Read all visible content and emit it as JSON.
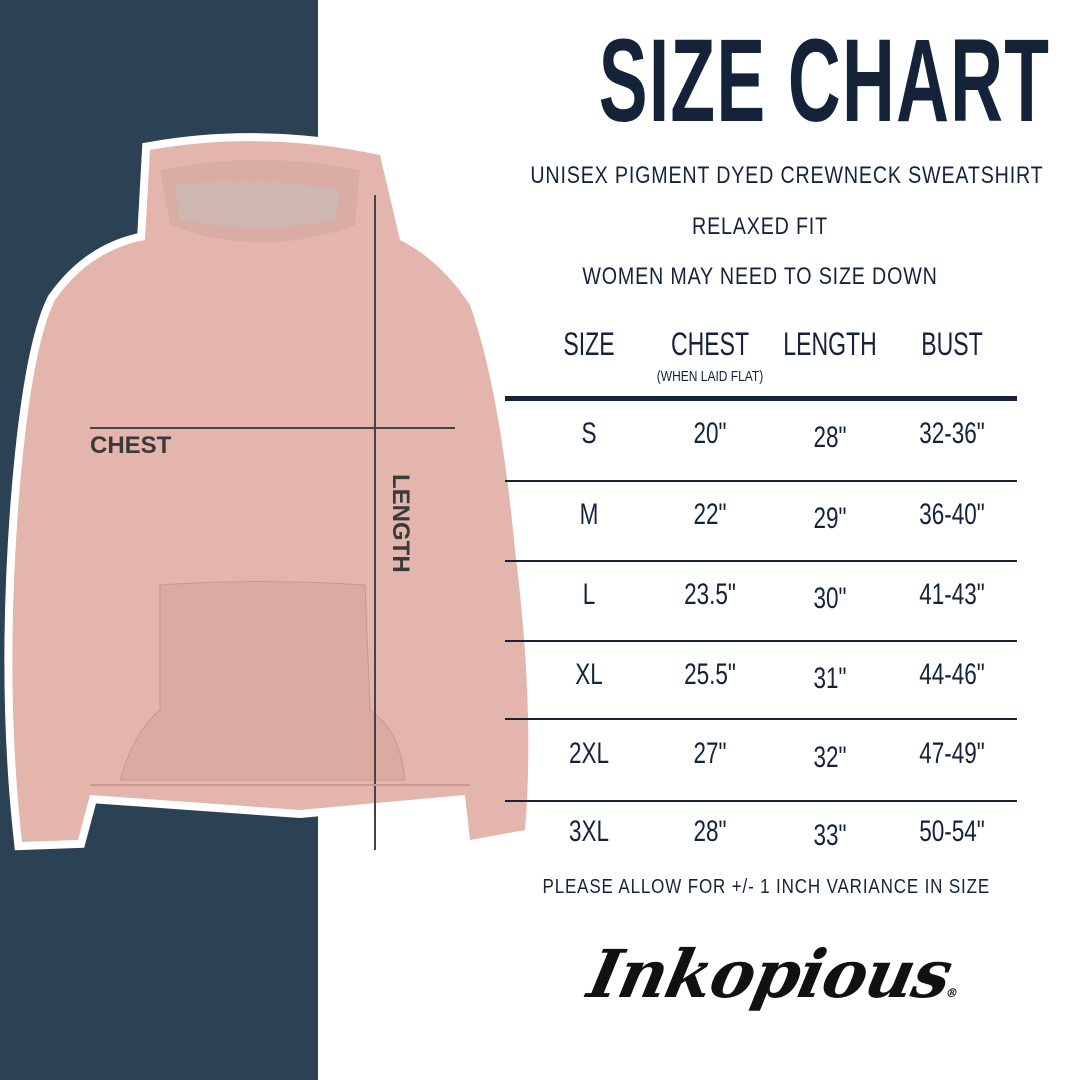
{
  "title": "SIZE CHART",
  "subtitles": [
    "UNISEX PIGMENT DYED CREWNECK SWEATSHIRT",
    "RELAXED FIT",
    "WOMEN MAY NEED TO SIZE DOWN"
  ],
  "table": {
    "headers": [
      "SIZE",
      "CHEST",
      "LENGTH",
      "BUST"
    ],
    "chest_note": "(WHEN LAID FLAT)",
    "rows": [
      [
        "S",
        "20\"",
        "28\"",
        "32-36\""
      ],
      [
        "M",
        "22\"",
        "29\"",
        "36-40\""
      ],
      [
        "L",
        "23.5\"",
        "30\"",
        "41-43\""
      ],
      [
        "XL",
        "25.5\"",
        "31\"",
        "44-46\""
      ],
      [
        "2XL",
        "27\"",
        "32\"",
        "47-49\""
      ],
      [
        "3XL",
        "28\"",
        "33\"",
        "50-54\""
      ]
    ]
  },
  "note": "PLEASE ALLOW FOR +/- 1 INCH VARIANCE IN SIZE",
  "photo_labels": {
    "chest": "CHEST",
    "length": "LENGTH"
  },
  "brand": "Inkopious",
  "colors": {
    "navy_panel": "#2b4154",
    "text": "#14233a",
    "hoodie": "#e3b5ad"
  }
}
